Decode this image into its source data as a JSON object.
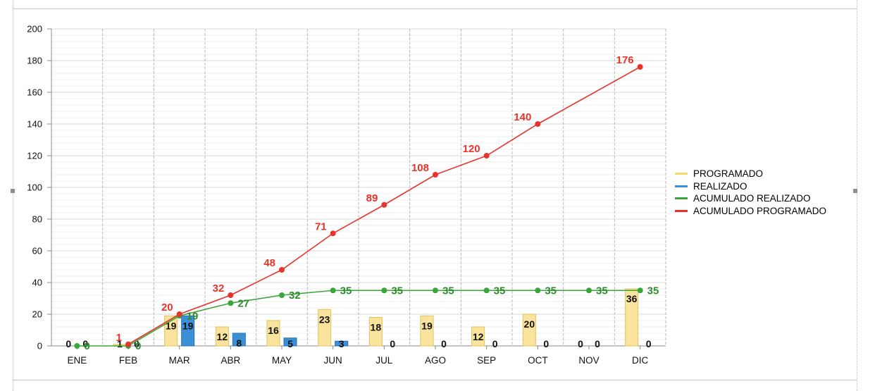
{
  "chart_data": {
    "type": "bar",
    "categories": [
      "ENE",
      "FEB",
      "MAR",
      "ABR",
      "MAY",
      "JUN",
      "JUL",
      "AGO",
      "SEP",
      "OCT",
      "NOV",
      "DIC"
    ],
    "series": [
      {
        "name": "PROGRAMADO",
        "type": "bar",
        "color": "#f5d76e",
        "values": [
          0,
          1,
          19,
          12,
          16,
          23,
          18,
          19,
          12,
          20,
          0,
          36
        ]
      },
      {
        "name": "REALIZADO",
        "type": "bar",
        "color": "#3a8fd6",
        "values": [
          0,
          0,
          19,
          8,
          5,
          3,
          0,
          0,
          0,
          0,
          0,
          0
        ]
      },
      {
        "name": "ACUMULADO REALIZADO",
        "type": "line",
        "color": "#3aa63a",
        "values": [
          0,
          0,
          19,
          27,
          32,
          35,
          35,
          35,
          35,
          35,
          35,
          35
        ]
      },
      {
        "name": "ACUMULADO PROGRAMADO",
        "type": "line",
        "color": "#e8332a",
        "values": [
          null,
          1,
          20,
          32,
          48,
          71,
          89,
          108,
          120,
          140,
          null,
          176
        ]
      }
    ],
    "ylim": [
      0,
      200
    ],
    "yticks": [
      0,
      20,
      40,
      60,
      80,
      100,
      120,
      140,
      160,
      180,
      200
    ],
    "grid": true,
    "legend_position": "right",
    "title": "",
    "xlabel": "",
    "ylabel": ""
  }
}
